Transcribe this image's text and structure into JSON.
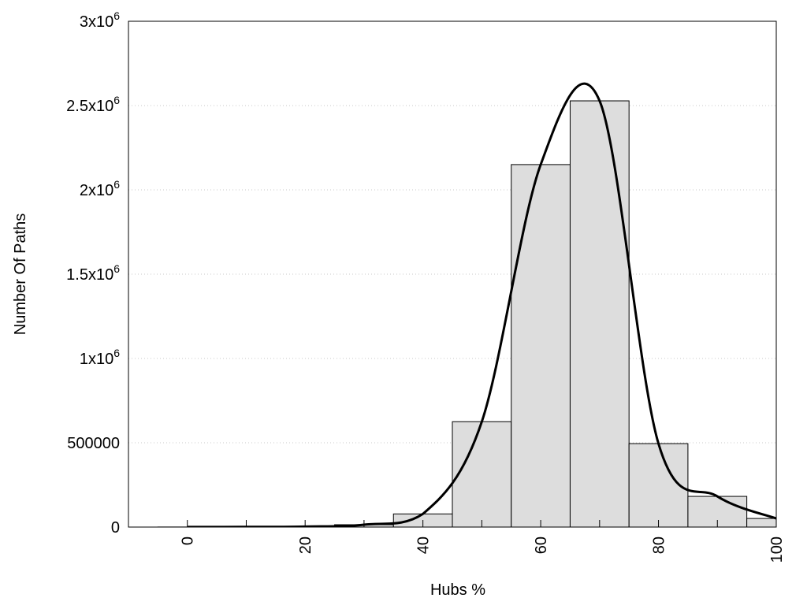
{
  "chart_data": {
    "type": "bar",
    "xlabel": "Hubs %",
    "ylabel": "Number Of Paths",
    "xlim": [
      -10,
      100
    ],
    "ylim": [
      0,
      3000000
    ],
    "grid": "horizontal dotted",
    "bar_width": 10,
    "x": [
      0,
      10,
      20,
      30,
      40,
      50,
      60,
      70,
      80,
      90,
      100
    ],
    "values": [
      500,
      1000,
      3000,
      14000,
      78000,
      625000,
      2150000,
      2528000,
      495000,
      182000,
      51000
    ],
    "curve": {
      "type": "line",
      "smoothed": true,
      "x": [
        0,
        10,
        20,
        30,
        40,
        50,
        60,
        70,
        80,
        90,
        100
      ],
      "values": [
        500,
        1000,
        3000,
        14000,
        78000,
        625000,
        2150000,
        2528000,
        495000,
        182000,
        51000
      ]
    },
    "xticks": [
      0,
      20,
      40,
      60,
      80,
      100
    ],
    "xtick_labels": [
      "0",
      "20",
      "40",
      "60",
      "80",
      "100"
    ],
    "yticks": [
      0,
      500000,
      1000000,
      1500000,
      2000000,
      2500000,
      3000000
    ],
    "ytick_labels": [
      {
        "base": "0",
        "exp": ""
      },
      {
        "base": "500000",
        "exp": ""
      },
      {
        "base": "1x10",
        "exp": "6"
      },
      {
        "base": "1.5x10",
        "exp": "6"
      },
      {
        "base": "2x10",
        "exp": "6"
      },
      {
        "base": "2.5x10",
        "exp": "6"
      },
      {
        "base": "3x10",
        "exp": "6"
      }
    ],
    "colors": {
      "bar_fill": "#dddddd",
      "bar_stroke": "#000000",
      "curve": "#000000",
      "grid": "#c8c8c8"
    }
  }
}
